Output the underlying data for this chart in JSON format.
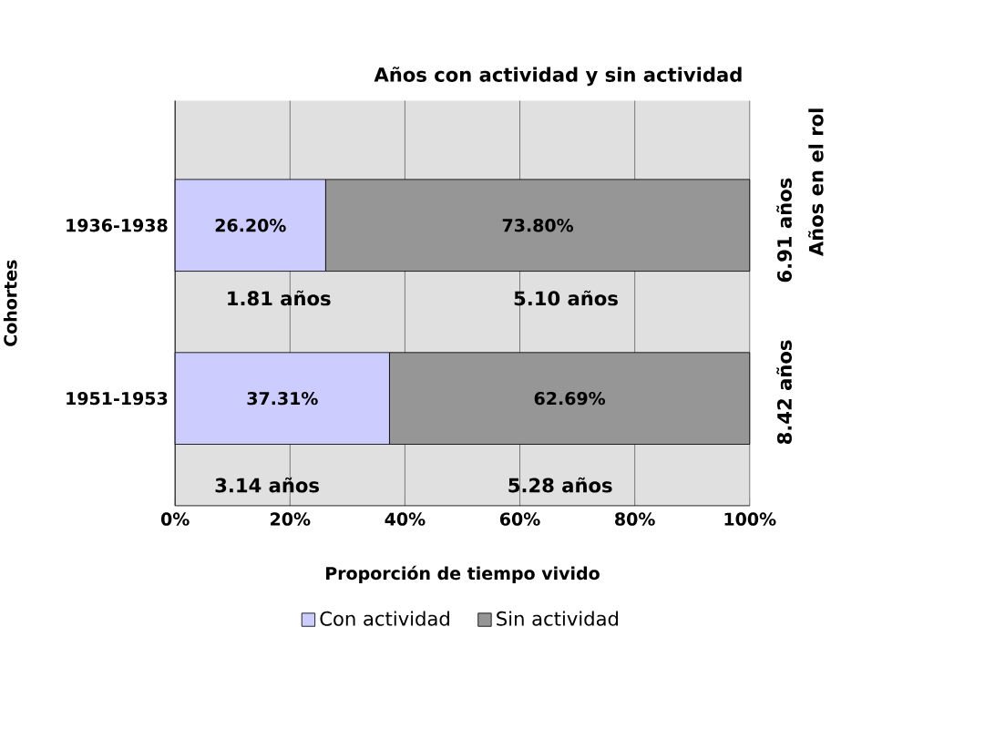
{
  "chart_data": {
    "type": "bar",
    "orientation": "horizontal",
    "stacked": true,
    "title": "Años con actividad y sin actividad",
    "xlabel": "Proporción de tiempo vivido",
    "ylabel": "Cohortes",
    "categories": [
      "1936-1938",
      "1951-1953"
    ],
    "series": [
      {
        "name": "Con actividad",
        "color": "#ccccff",
        "values": [
          26.2,
          37.31
        ],
        "value_labels": [
          "26.20%",
          "37.31%"
        ]
      },
      {
        "name": "Sin actividad",
        "color": "#969696",
        "values": [
          73.8,
          62.69
        ],
        "value_labels": [
          "73.80%",
          "62.69%"
        ]
      }
    ],
    "xlim": [
      0,
      100
    ],
    "xticks": [
      {
        "value": 0,
        "label": "0%"
      },
      {
        "value": 20,
        "label": "20%"
      },
      {
        "value": 40,
        "label": "40%"
      },
      {
        "value": 60,
        "label": "60%"
      },
      {
        "value": 80,
        "label": "80%"
      },
      {
        "value": 100,
        "label": "100%"
      }
    ],
    "grid": "x",
    "legend": "bottom",
    "annotations": [
      "Años en el rol",
      "6.91 años",
      "8.42 años",
      "1.81 años",
      "5.10 años",
      "3.14 años",
      "5.28 años"
    ]
  }
}
